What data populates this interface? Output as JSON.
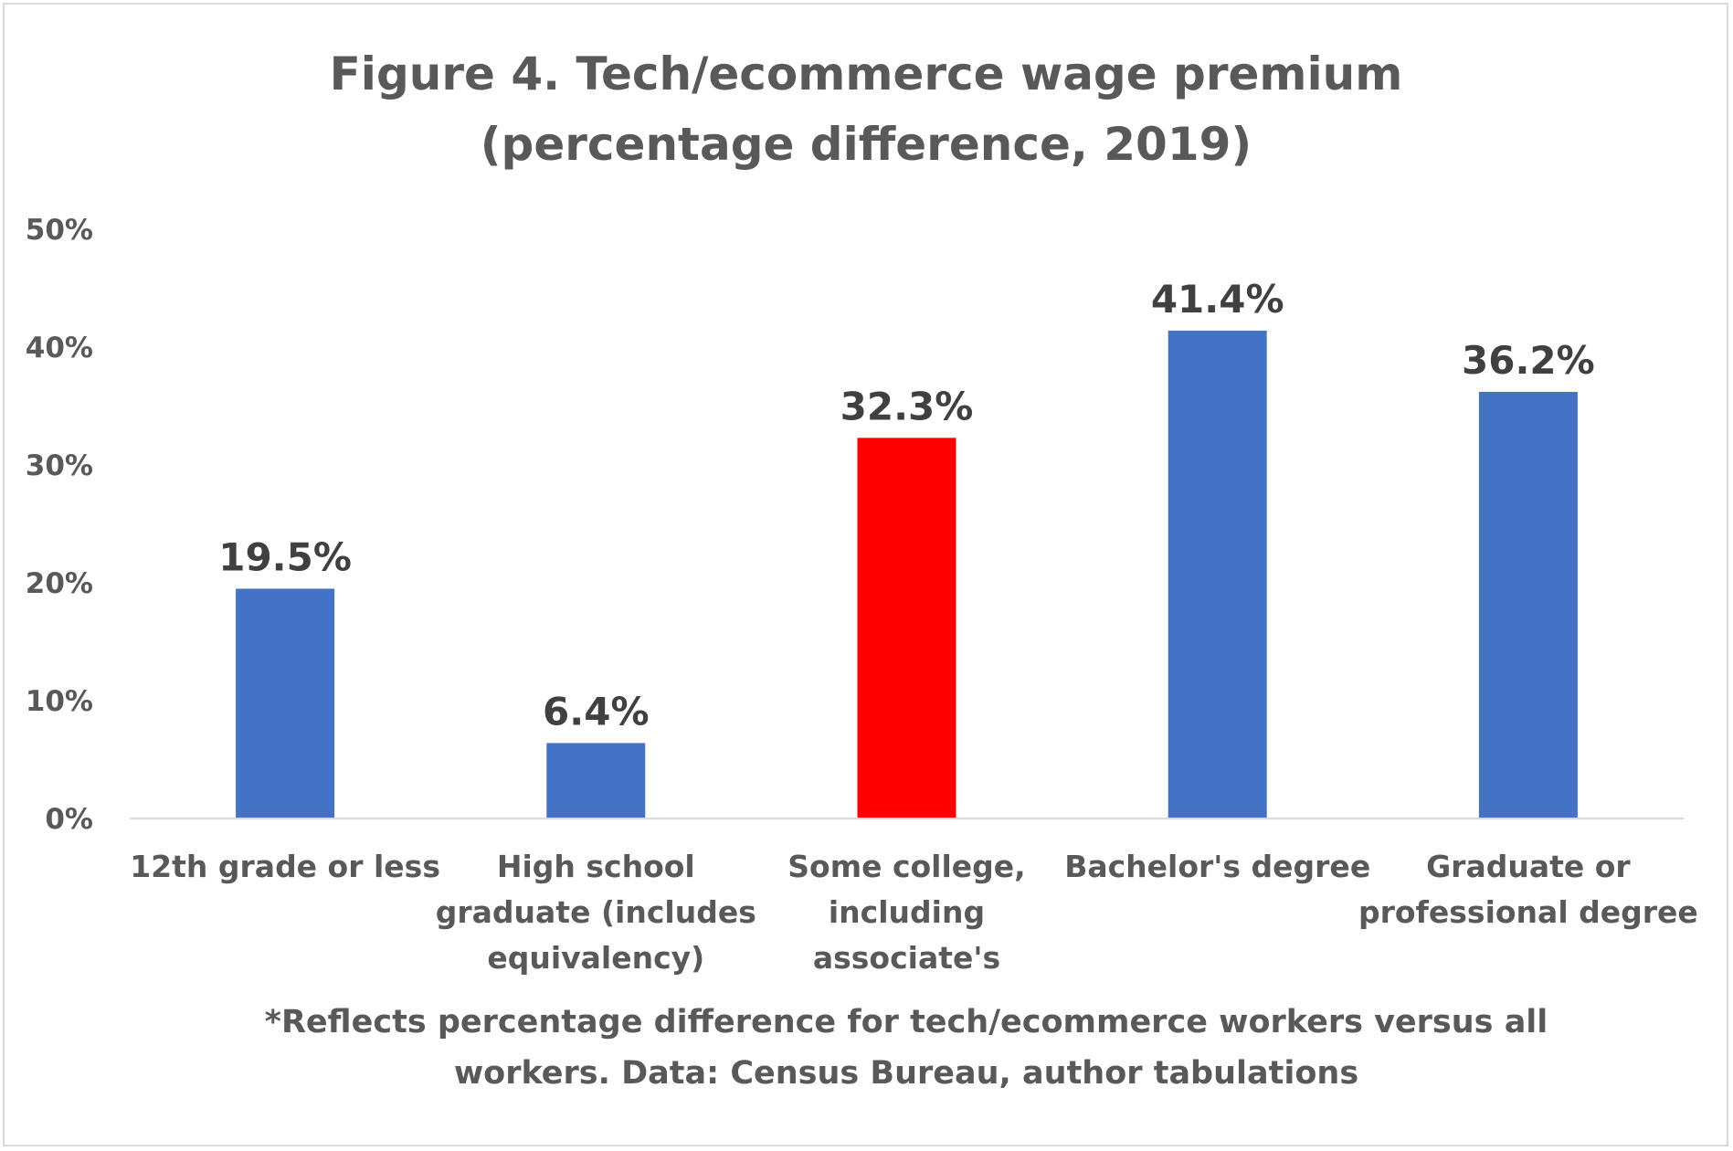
{
  "chart_data": {
    "type": "bar",
    "title_lines": [
      "Figure 4. Tech/ecommerce wage premium",
      "(percentage difference, 2019)"
    ],
    "categories": [
      [
        "12th grade or less"
      ],
      [
        "High school",
        "graduate (includes",
        "equivalency)"
      ],
      [
        "Some college,",
        "including",
        "associate's"
      ],
      [
        "Bachelor's degree"
      ],
      [
        "Graduate or",
        "professional degree"
      ]
    ],
    "values": [
      19.5,
      6.4,
      32.3,
      41.4,
      36.2
    ],
    "data_labels": [
      "19.5%",
      "6.4%",
      "32.3%",
      "41.4%",
      "36.2%"
    ],
    "bar_colors": [
      "#4472C4",
      "#4472C4",
      "#FF0000",
      "#4472C4",
      "#4472C4"
    ],
    "ylim": [
      0,
      50
    ],
    "yticks": [
      0,
      10,
      20,
      30,
      40,
      50
    ],
    "ytick_labels": [
      "0%",
      "10%",
      "20%",
      "30%",
      "40%",
      "50%"
    ],
    "grid": false,
    "legend": "none",
    "note_lines": [
      "*Reflects percentage difference for tech/ecommerce workers  versus all",
      "workers. Data: Census Bureau, author tabulations"
    ],
    "colors": {
      "text": "#595959",
      "data_label": "#404040",
      "axis": "#d9d9d9",
      "border": "#d9d9d9"
    }
  }
}
